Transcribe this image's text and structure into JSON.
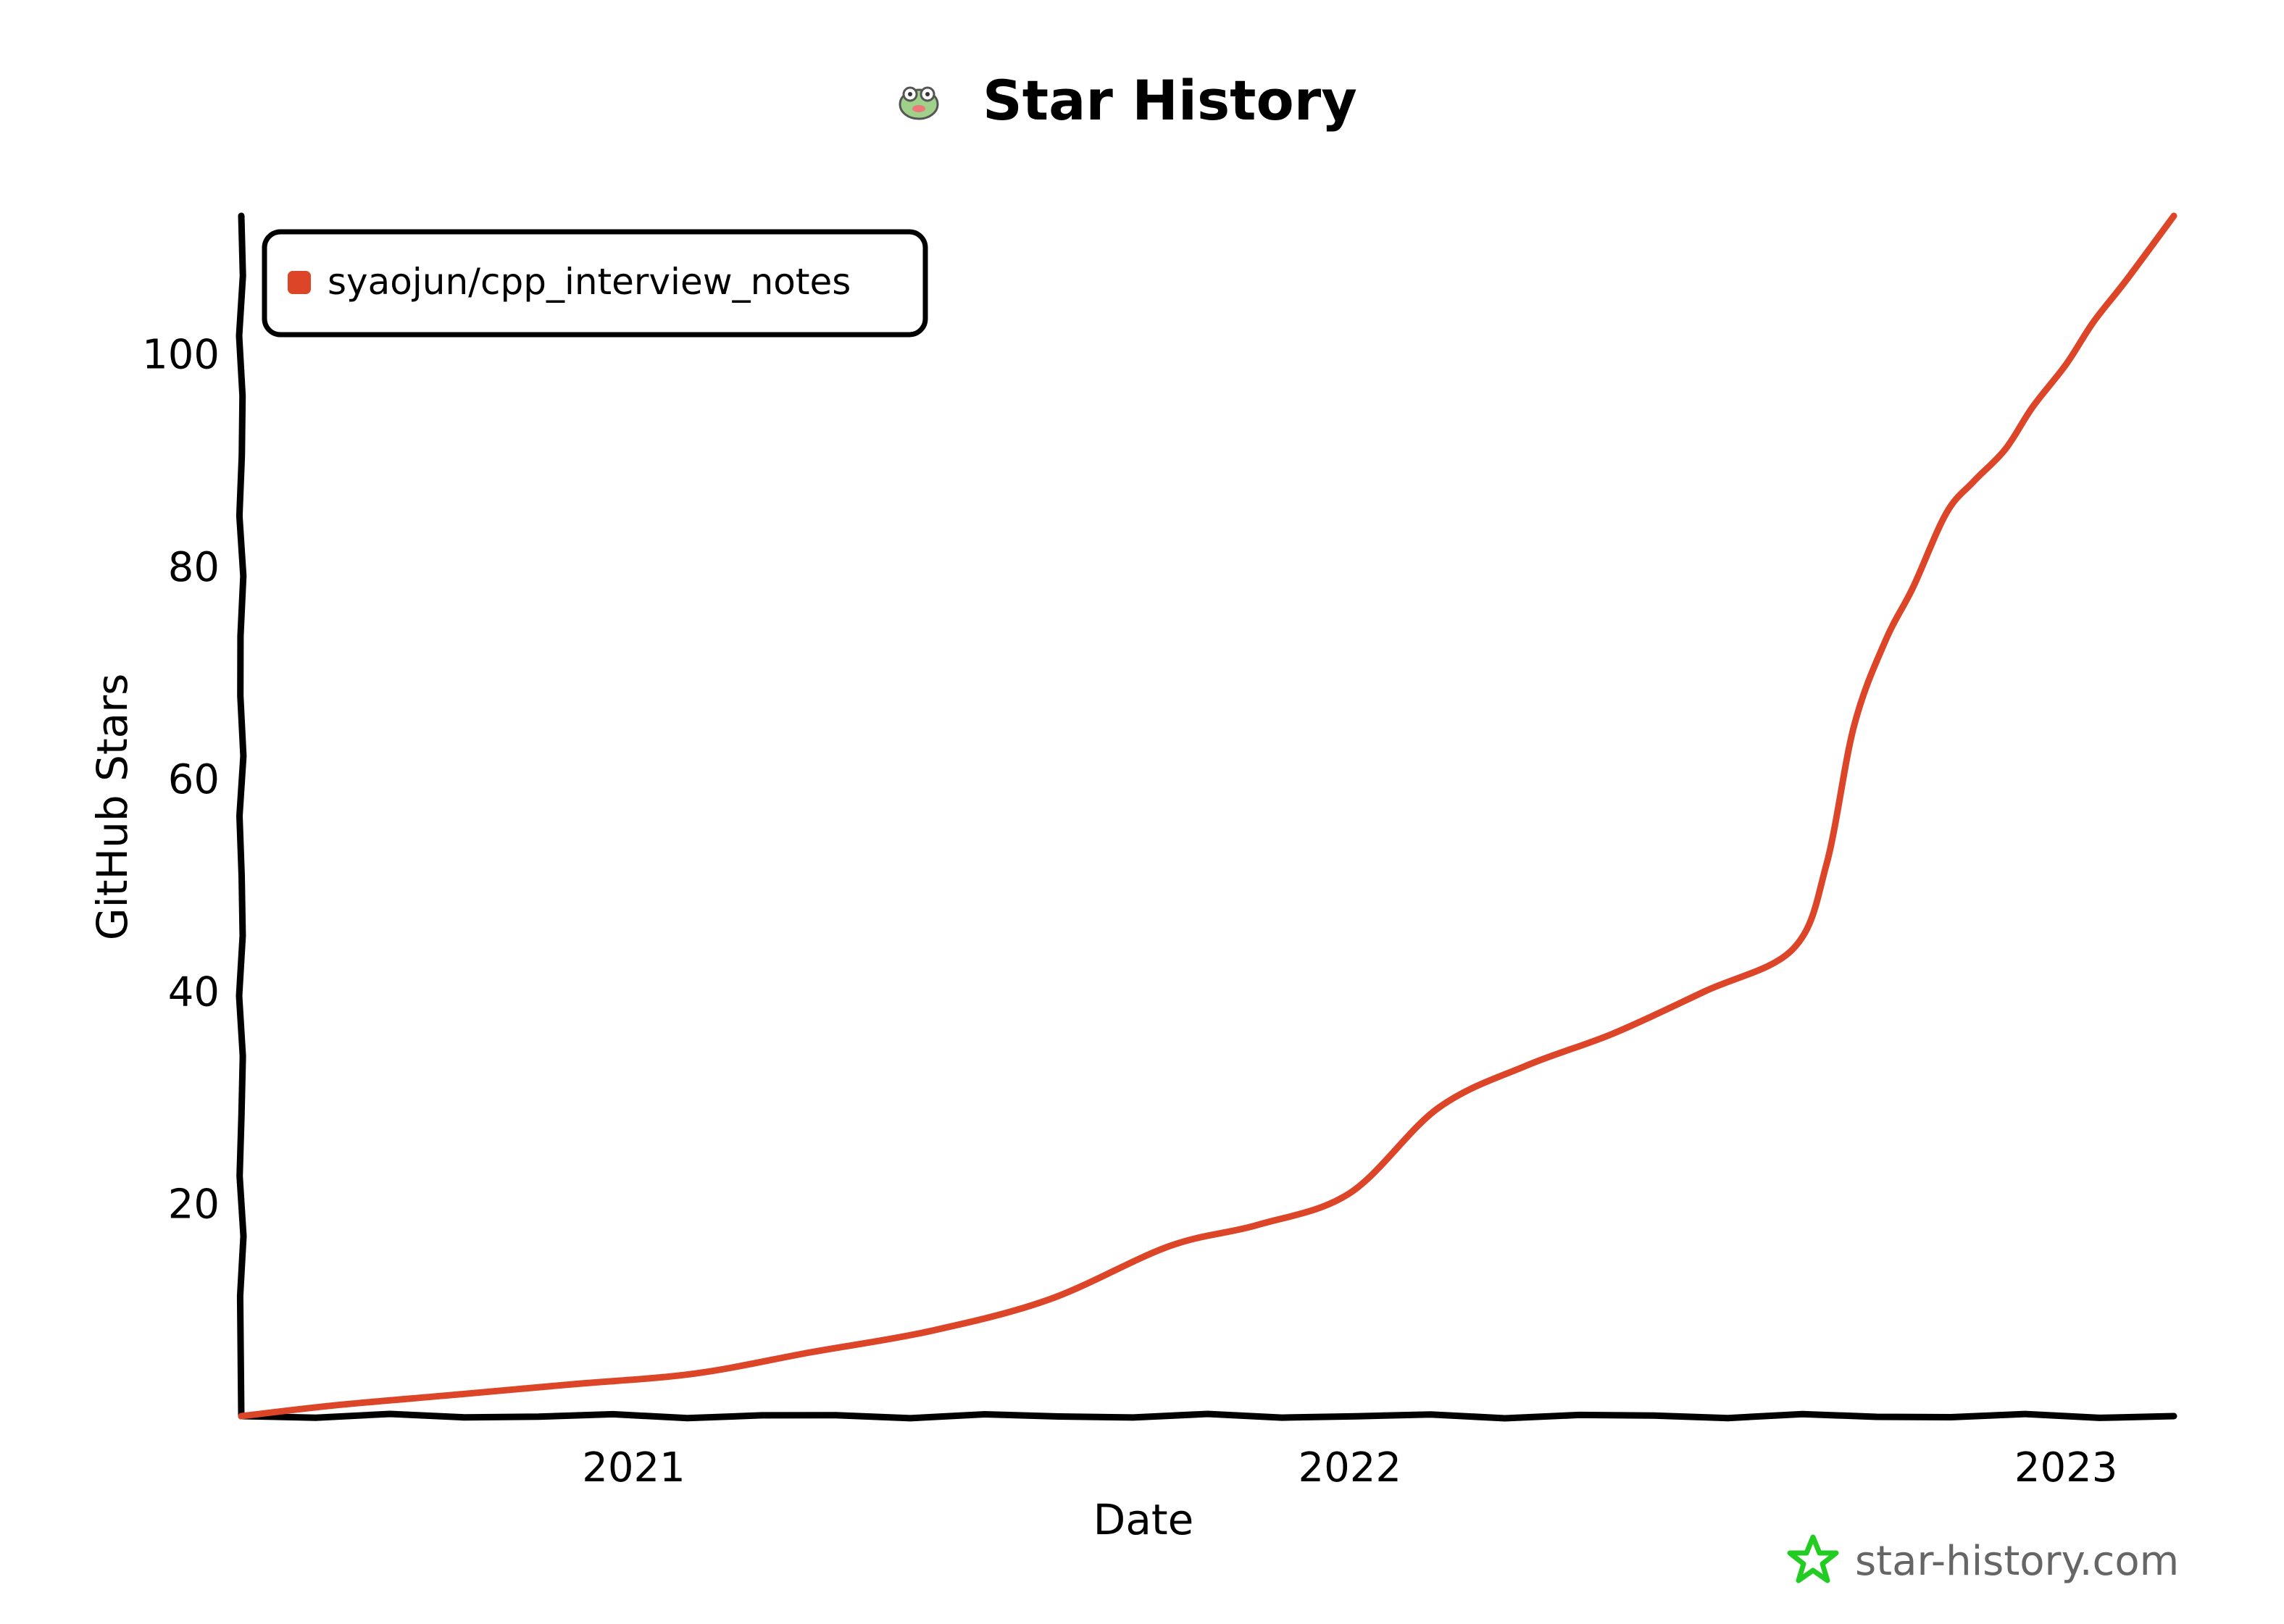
{
  "chart_data": {
    "type": "line",
    "title": "Star History",
    "xlabel": "Date",
    "ylabel": "GitHub Stars",
    "x_tick_labels": [
      "2021",
      "2022",
      "2023"
    ],
    "y_tick_labels": [
      "20",
      "40",
      "60",
      "80",
      "100"
    ],
    "y_ticks": [
      20,
      40,
      60,
      80,
      100
    ],
    "xlim": [
      "2020-06-15",
      "2023-02-25"
    ],
    "ylim": [
      0,
      113
    ],
    "x_ticks": [
      "2021-01-01",
      "2022-01-01",
      "2023-01-01"
    ],
    "legend": "top-left",
    "grid": false,
    "series": [
      {
        "name": "syaojun/cpp_interview_notes",
        "color": "#dd4528",
        "x": [
          "2020-06-15",
          "2020-08-01",
          "2020-10-01",
          "2020-12-01",
          "2021-02-01",
          "2021-04-01",
          "2021-06-01",
          "2021-08-01",
          "2021-10-01",
          "2021-11-15",
          "2022-01-01",
          "2022-02-15",
          "2022-04-01",
          "2022-05-15",
          "2022-07-01",
          "2022-08-15",
          "2022-09-01",
          "2022-09-15",
          "2022-10-01",
          "2022-10-15",
          "2022-11-01",
          "2022-11-15",
          "2022-12-01",
          "2022-12-15",
          "2023-01-01",
          "2023-01-15",
          "2023-02-01",
          "2023-02-25"
        ],
        "values": [
          0,
          1,
          2,
          3,
          4,
          6,
          8,
          11,
          16,
          18,
          21,
          29,
          33,
          36,
          40,
          44,
          52,
          65,
          73,
          78,
          85,
          88,
          91,
          95,
          99,
          103,
          107,
          113
        ]
      }
    ]
  },
  "watermark": {
    "text": "star-history.com",
    "icon": "star-icon",
    "icon_color": "#22cc22"
  },
  "logo": {
    "icon": "frog-mascot-icon"
  }
}
